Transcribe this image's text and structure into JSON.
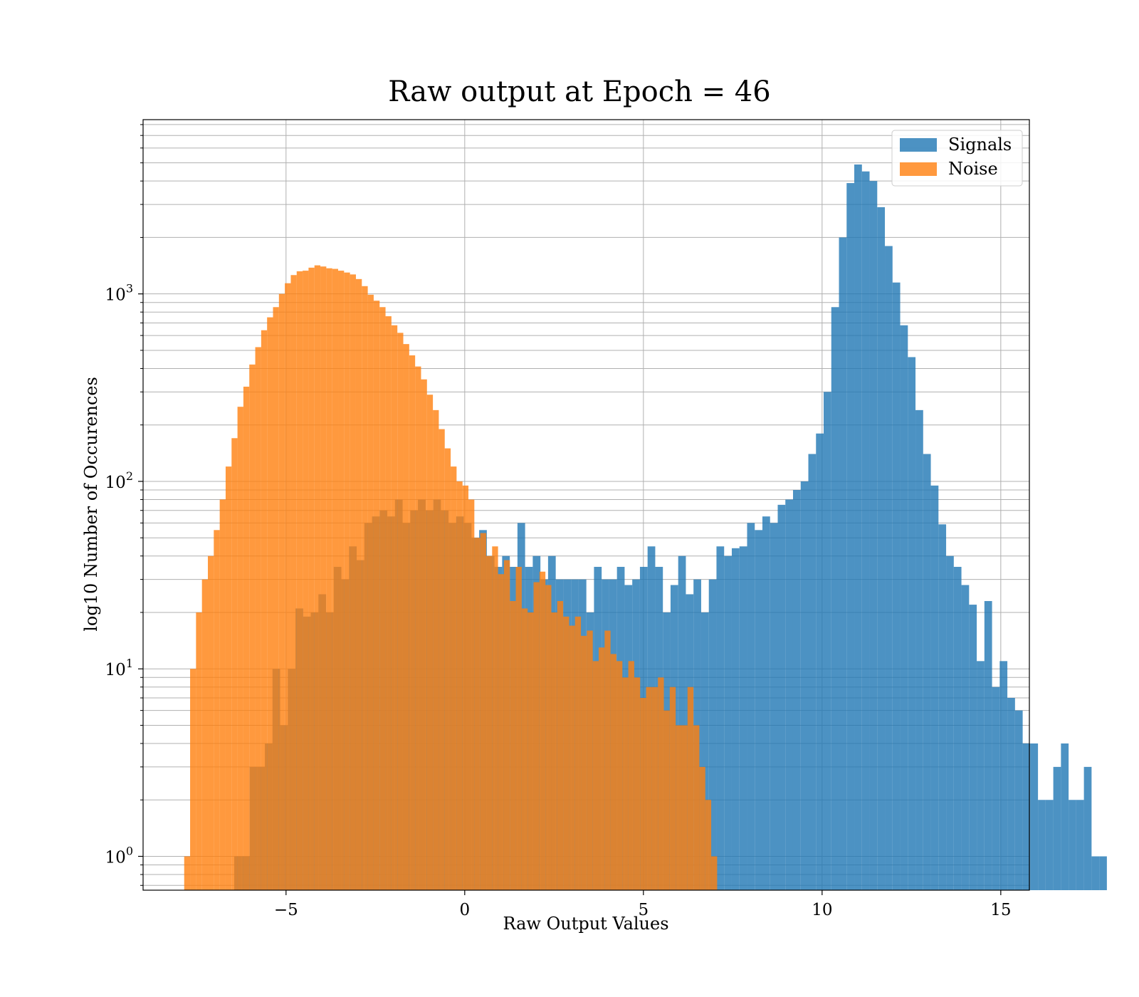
{
  "chart_data": {
    "type": "bar",
    "title": "Raw output at Epoch = 46",
    "xlabel": "Raw Output Values",
    "ylabel": "log10 Number of Occurences",
    "xlim": [
      -9.0,
      15.8
    ],
    "ylim": [
      0.66,
      8500
    ],
    "yscale": "log",
    "grid": true,
    "legend_position": "top-right",
    "x_ticks": [
      {
        "value": -5,
        "label": "−5"
      },
      {
        "value": 0,
        "label": "0"
      },
      {
        "value": 5,
        "label": "5"
      },
      {
        "value": 10,
        "label": "10"
      },
      {
        "value": 15,
        "label": "15"
      }
    ],
    "y_ticks": [
      {
        "value": 1,
        "base": "10",
        "exp": "0"
      },
      {
        "value": 10,
        "base": "10",
        "exp": "1"
      },
      {
        "value": 100,
        "base": "10",
        "exp": "2"
      },
      {
        "value": 1000,
        "base": "10",
        "exp": "3"
      }
    ],
    "series": [
      {
        "name": "Signals",
        "color": "#1f77b4",
        "opacity": 0.8,
        "bin_start": -6.45,
        "bin_width": 0.2142,
        "counts": [
          1,
          1,
          3,
          3,
          4,
          10,
          5,
          10,
          21,
          19,
          20,
          25,
          20,
          35,
          30,
          45,
          38,
          60,
          65,
          70,
          65,
          80,
          60,
          70,
          80,
          70,
          80,
          70,
          60,
          65,
          60,
          50,
          55,
          40,
          35,
          40,
          35,
          60,
          35,
          40,
          30,
          40,
          30,
          30,
          30,
          30,
          20,
          35,
          30,
          30,
          35,
          28,
          30,
          35,
          45,
          35,
          20,
          28,
          40,
          25,
          30,
          20,
          30,
          45,
          40,
          44,
          45,
          60,
          55,
          65,
          60,
          75,
          80,
          90,
          100,
          140,
          180,
          300,
          850,
          2000,
          3900,
          4900,
          4500,
          4000,
          2900,
          1800,
          1150,
          680,
          460,
          240,
          140,
          95,
          59,
          40,
          35,
          28,
          22,
          11,
          23,
          8,
          11,
          7,
          6,
          4,
          4,
          2,
          2,
          3,
          4,
          2,
          2,
          3,
          1,
          1
        ],
        "bins_note": ""
      },
      {
        "name": "Noise",
        "color": "#ff7f0e",
        "opacity": 0.8,
        "bin_start": -7.85,
        "bin_width": 0.1657,
        "counts": [
          1,
          10,
          20,
          30,
          40,
          55,
          80,
          120,
          170,
          250,
          320,
          420,
          520,
          640,
          750,
          850,
          1000,
          1140,
          1260,
          1320,
          1330,
          1380,
          1420,
          1400,
          1370,
          1360,
          1330,
          1300,
          1270,
          1200,
          1100,
          990,
          920,
          850,
          760,
          680,
          620,
          540,
          470,
          410,
          350,
          290,
          240,
          190,
          150,
          120,
          100,
          95,
          80,
          50,
          53,
          40,
          45,
          32,
          38,
          23,
          35,
          21,
          20,
          29,
          33,
          28,
          20,
          23,
          19,
          17,
          19,
          15,
          16,
          11,
          13,
          16,
          12,
          11,
          9,
          11,
          9,
          7,
          8,
          8,
          9,
          6,
          8,
          5,
          5,
          8,
          5,
          3,
          2,
          1
        ],
        "bins_note": ""
      }
    ]
  },
  "legend": {
    "items": [
      {
        "label": "Signals",
        "color": "#1f77b4"
      },
      {
        "label": "Noise",
        "color": "#ff7f0e"
      }
    ]
  }
}
